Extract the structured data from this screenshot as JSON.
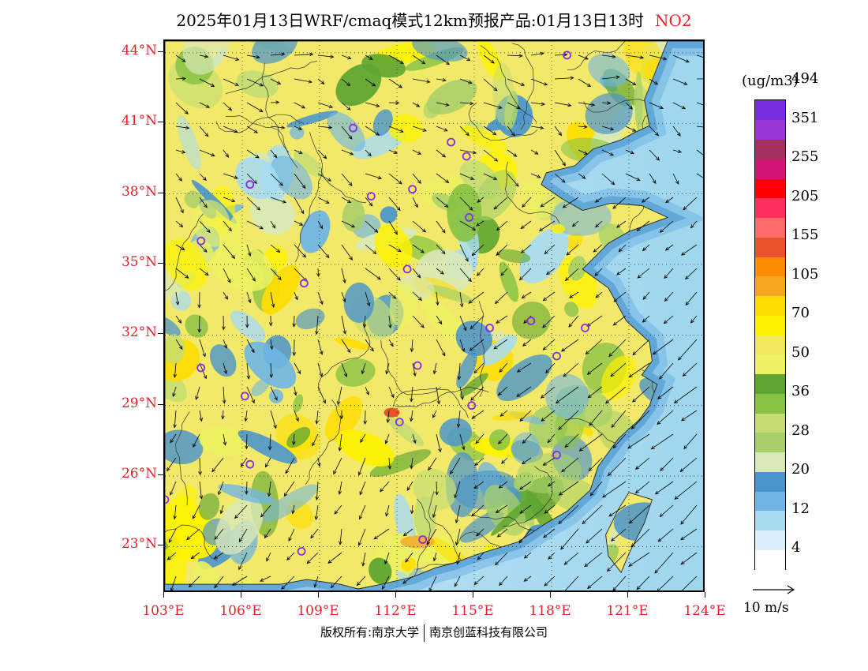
{
  "title": {
    "text": "2025年01月13日WRF/cmaq模式12km预报产品:01月13日13时",
    "species": "NO2"
  },
  "map": {
    "lat_labels": [
      "44°N",
      "41°N",
      "38°N",
      "35°N",
      "32°N",
      "29°N",
      "26°N",
      "23°N"
    ],
    "lon_labels": [
      "103°E",
      "106°E",
      "109°E",
      "112°E",
      "115°E",
      "118°E",
      "121°E",
      "124°E"
    ],
    "extent": {
      "lon_min": 103,
      "lon_max": 124,
      "lat_min": 21,
      "lat_max": 44.5
    },
    "land_color": "#f2e96a",
    "sea_color": "#9fd6ee",
    "city_marker_color": "#8b2be2",
    "city_markers": [
      {
        "lon": 118.6,
        "lat": 43.9
      },
      {
        "lon": 110.3,
        "lat": 40.8
      },
      {
        "lon": 114.1,
        "lat": 40.2
      },
      {
        "lon": 114.7,
        "lat": 39.6
      },
      {
        "lon": 106.3,
        "lat": 38.4
      },
      {
        "lon": 111.0,
        "lat": 37.9
      },
      {
        "lon": 112.6,
        "lat": 38.2
      },
      {
        "lon": 114.8,
        "lat": 37.0
      },
      {
        "lon": 104.4,
        "lat": 36.0
      },
      {
        "lon": 112.4,
        "lat": 34.8
      },
      {
        "lon": 108.4,
        "lat": 34.2
      },
      {
        "lon": 115.6,
        "lat": 32.3
      },
      {
        "lon": 117.2,
        "lat": 32.6
      },
      {
        "lon": 119.3,
        "lat": 32.3
      },
      {
        "lon": 118.2,
        "lat": 31.1
      },
      {
        "lon": 104.4,
        "lat": 30.6
      },
      {
        "lon": 112.8,
        "lat": 30.7
      },
      {
        "lon": 106.1,
        "lat": 29.4
      },
      {
        "lon": 114.9,
        "lat": 29.0
      },
      {
        "lon": 112.1,
        "lat": 28.3
      },
      {
        "lon": 118.2,
        "lat": 26.9
      },
      {
        "lon": 106.3,
        "lat": 26.5
      },
      {
        "lon": 103.0,
        "lat": 25.0
      },
      {
        "lon": 108.3,
        "lat": 22.8
      },
      {
        "lon": 113.0,
        "lat": 23.3
      }
    ]
  },
  "legend": {
    "unit": "(ug/m3)",
    "colors": [
      "#ffffff",
      "#d8eef8",
      "#a7dbf2",
      "#6fb5e3",
      "#4a94cc",
      "#d9e8b8",
      "#a8d06a",
      "#c4dd74",
      "#88c244",
      "#5ea532",
      "#ecf260",
      "#f3e85c",
      "#fff200",
      "#ffdd00",
      "#f5a623",
      "#ff8c00",
      "#e8532b",
      "#ff6a6a",
      "#ff3060",
      "#ff0000",
      "#d41578",
      "#a83060",
      "#9a35d8",
      "#7a2ce0"
    ],
    "labels": [
      "4",
      "12",
      "20",
      "28",
      "36",
      "50",
      "70",
      "105",
      "155",
      "205",
      "255",
      "351",
      "494"
    ],
    "ref_label": "10  m/s"
  },
  "footer": {
    "copyright_left": "版权所有:南京大学",
    "copyright_right": "南京创蓝科技有限公司"
  }
}
